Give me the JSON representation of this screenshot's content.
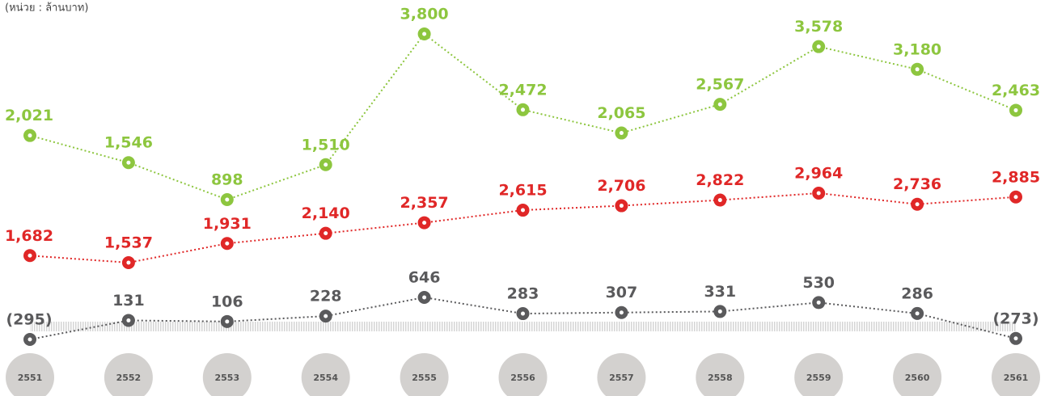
{
  "chart_data": {
    "type": "line",
    "subtitle": "(หน่วย : ล้านบาท)",
    "categories": [
      "2551",
      "2552",
      "2553",
      "2554",
      "2555",
      "2556",
      "2557",
      "2558",
      "2559",
      "2560",
      "2561"
    ],
    "series": [
      {
        "color": "#8dc63f",
        "values": [
          2021,
          1546,
          898,
          1510,
          3800,
          2472,
          2065,
          2567,
          3578,
          3180,
          2463
        ],
        "value_labels": [
          "2,021",
          "1,546",
          "898",
          "1,510",
          "3,800",
          "2,472",
          "2,065",
          "2,567",
          "3,578",
          "3,180",
          "2,463"
        ]
      },
      {
        "color": "#e02727",
        "values": [
          1682,
          1537,
          1931,
          2140,
          2357,
          2615,
          2706,
          2822,
          2964,
          2736,
          2885
        ],
        "value_labels": [
          "1,682",
          "1,537",
          "1,931",
          "2,140",
          "2,357",
          "2,615",
          "2,706",
          "2,822",
          "2,964",
          "2,736",
          "2,885"
        ]
      },
      {
        "color": "#5a5a5c",
        "values": [
          -295,
          131,
          106,
          228,
          646,
          283,
          307,
          331,
          530,
          286,
          -273
        ],
        "value_labels": [
          "(295)",
          "131",
          "106",
          "228",
          "646",
          "283",
          "307",
          "331",
          "530",
          "286",
          "(273)"
        ]
      }
    ]
  }
}
